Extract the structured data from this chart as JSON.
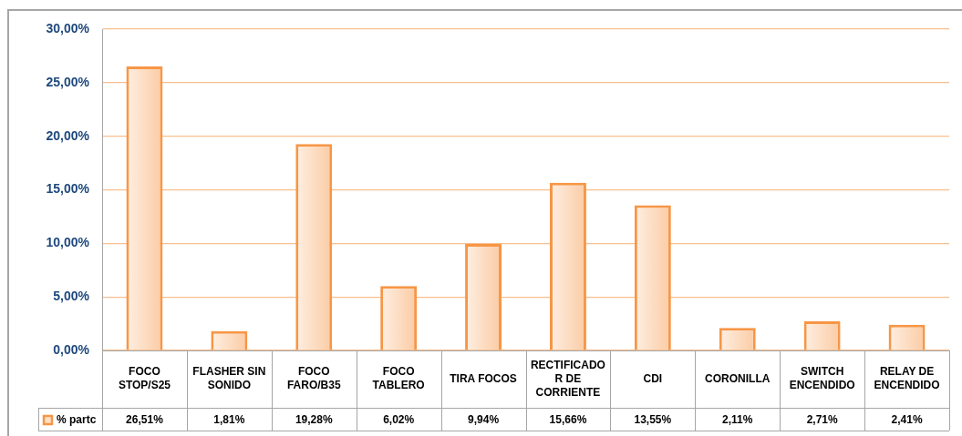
{
  "chart_data": {
    "type": "bar",
    "categories": [
      "FOCO STOP/S25",
      "FLASHER SIN SONIDO",
      "FOCO FARO/B35",
      "FOCO TABLERO",
      "TIRA FOCOS",
      "RECTIFICADOR DE CORRIENTE",
      "CDI",
      "CORONILLA",
      "SWITCH ENCENDIDO",
      "RELAY DE ENCENDIDO"
    ],
    "series": [
      {
        "name": "% partc",
        "color": "#f79646",
        "values": [
          26.51,
          1.81,
          19.28,
          6.02,
          9.94,
          15.66,
          13.55,
          2.11,
          2.71,
          2.41
        ],
        "value_labels": [
          "26,51%",
          "1,81%",
          "19,28%",
          "6,02%",
          "9,94%",
          "15,66%",
          "13,55%",
          "2,11%",
          "2,71%",
          "2,41%"
        ]
      }
    ],
    "ylim": [
      0,
      30
    ],
    "yticks": [
      {
        "value": 0,
        "label": "0,00%"
      },
      {
        "value": 5,
        "label": "5,00%"
      },
      {
        "value": 10,
        "label": "10,00%"
      },
      {
        "value": 15,
        "label": "15,00%"
      },
      {
        "value": 20,
        "label": "20,00%"
      },
      {
        "value": 25,
        "label": "25,00%"
      },
      {
        "value": 30,
        "label": "30,00%"
      }
    ],
    "grid": "y",
    "legend": "bottom left"
  }
}
